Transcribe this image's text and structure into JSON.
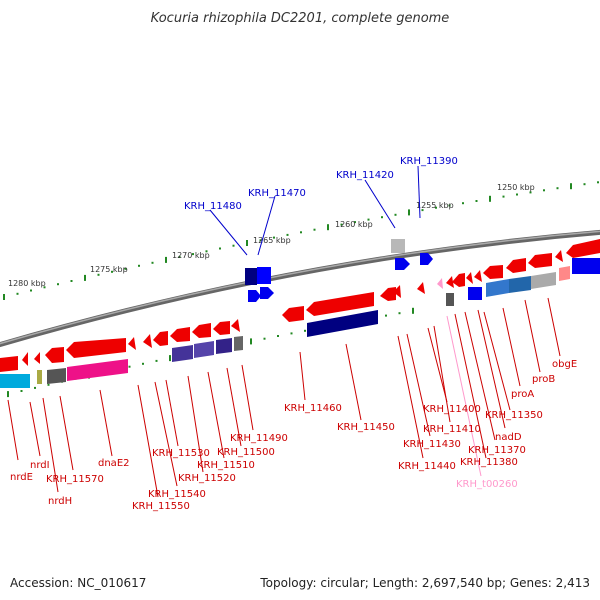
{
  "title": "Kocuria rhizophila DC2201, complete genome",
  "footer": {
    "accession": "Accession: NC_010617",
    "info": "Topology: circular; Length: 2,697,540 bp; Genes: 2,413"
  },
  "colors": {
    "backbone": "#888888",
    "gene_red": "#ff0000",
    "gene_blue": "#0000ff",
    "label_red": "#cc0000",
    "label_blue": "#0000cc",
    "label_pink": "#ff99cc",
    "tick": "#228822"
  },
  "scale_labels": [
    "1280 kbp",
    "1275 kbp",
    "1270 kbp",
    "1265 kbp",
    "1260 kbp",
    "1255 kbp",
    "1250 kbp"
  ],
  "labels_top": [
    "KRH_11390",
    "KRH_11420",
    "KRH_11470",
    "KRH_11480"
  ],
  "labels_bottom": [
    "nrdE",
    "nrdI",
    "nrdH",
    "KRH_11570",
    "dnaE2",
    "KRH_11550",
    "KRH_11540",
    "KRH_11530",
    "KRH_11520",
    "KRH_11510",
    "KRH_11500",
    "KRH_11490",
    "KRH_11460",
    "KRH_11450",
    "KRH_11440",
    "KRH_11430",
    "KRH_11400",
    "KRH_11410",
    "KRH_t00260",
    "KRH_11380",
    "KRH_11370",
    "nadD",
    "KRH_11350",
    "proA",
    "proB",
    "obgE"
  ]
}
